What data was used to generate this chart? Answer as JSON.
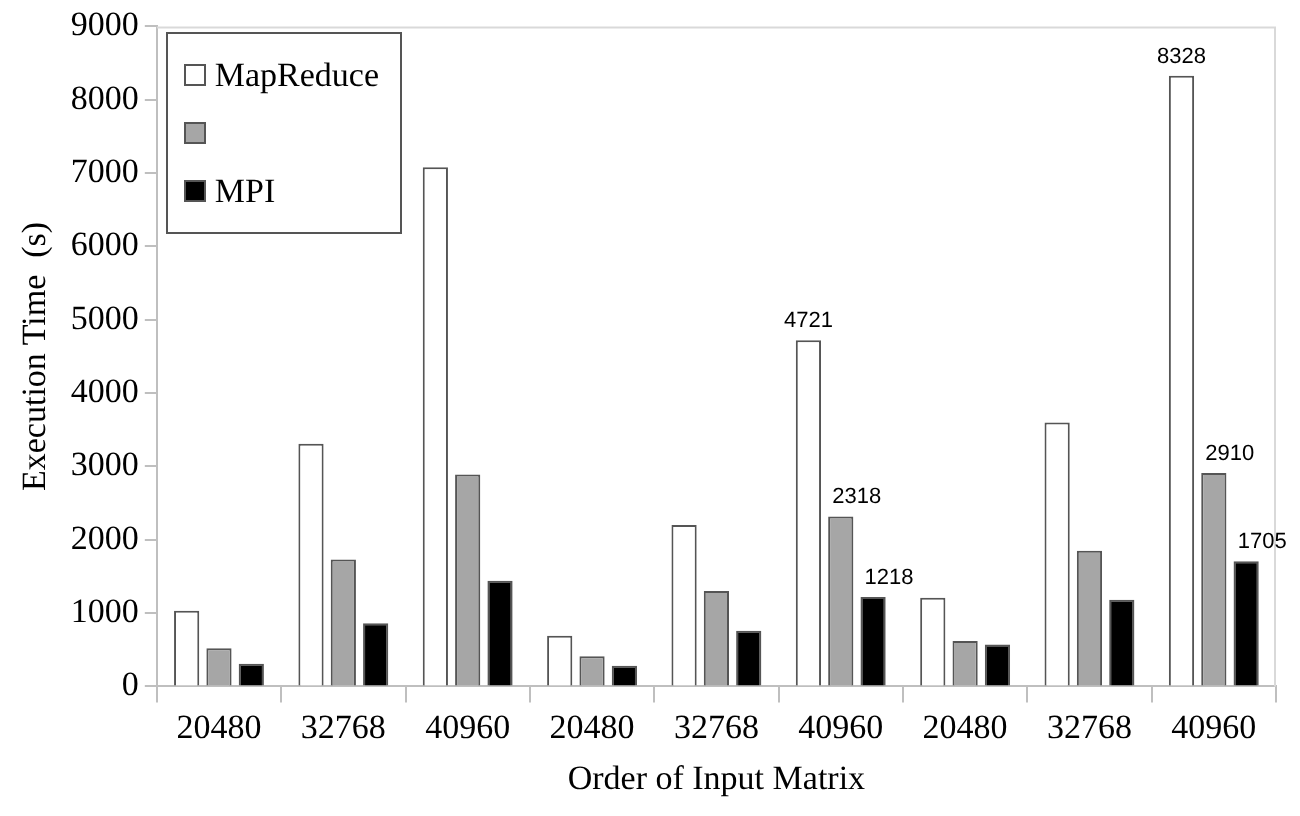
{
  "chart_data": {
    "type": "bar",
    "xlabel": "Order of Input Matrix",
    "ylabel": "Execution Time  (s)",
    "categories": [
      "20480",
      "32768",
      "40960",
      "20480",
      "32768",
      "40960",
      "20480",
      "32768",
      "40960"
    ],
    "series": [
      {
        "name": "MapReduce",
        "color": "#ffffff",
        "values": [
          1030,
          3310,
          7080,
          690,
          2200,
          4721,
          1210,
          3600,
          8328
        ],
        "value_labels": [
          null,
          null,
          null,
          null,
          null,
          "4721",
          null,
          null,
          "8328"
        ]
      },
      {
        "color": "#a6a6a6",
        "values": [
          520,
          1730,
          2890,
          410,
          1300,
          2318,
          620,
          1850,
          2910
        ],
        "value_labels": [
          null,
          null,
          null,
          null,
          null,
          "2318",
          null,
          null,
          "2910"
        ]
      },
      {
        "name": "MPI",
        "color": "#000000",
        "values": [
          310,
          860,
          1440,
          280,
          760,
          1218,
          570,
          1180,
          1705
        ],
        "value_labels": [
          null,
          null,
          null,
          null,
          null,
          "1218",
          null,
          null,
          "1705"
        ]
      }
    ],
    "ylim": [
      0,
      9000
    ],
    "yticks": [
      0,
      1000,
      2000,
      3000,
      4000,
      5000,
      6000,
      7000,
      8000,
      9000
    ],
    "grid": false,
    "legend": "top left"
  }
}
